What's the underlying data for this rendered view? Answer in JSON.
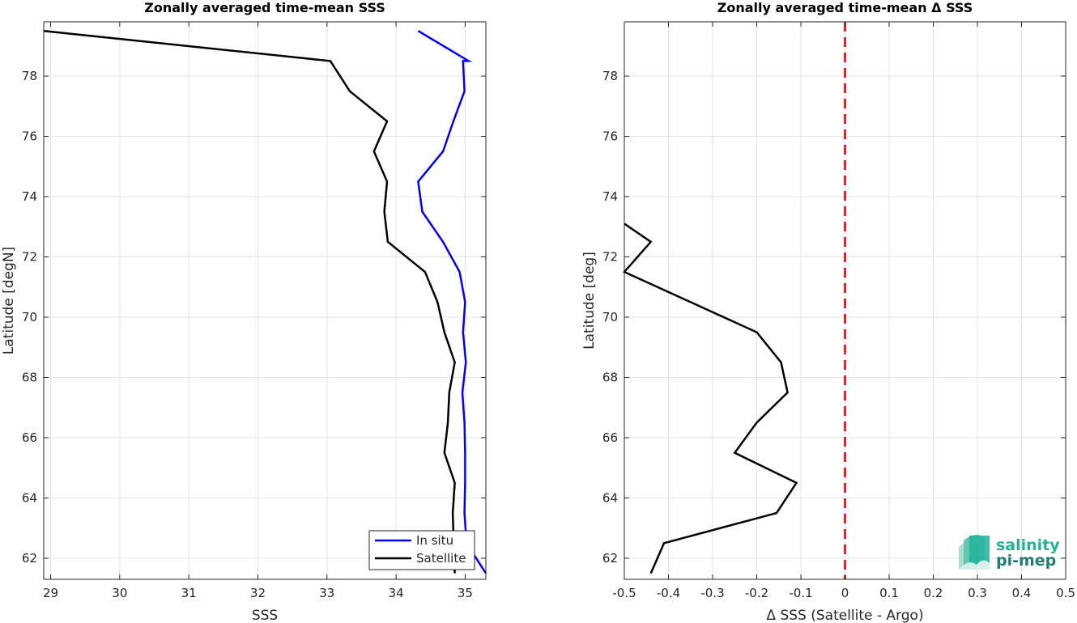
{
  "chart_data": [
    {
      "type": "line",
      "title": "Zonally averaged time-mean SSS",
      "xlabel": "SSS",
      "ylabel": "Latitude [degN]",
      "xlim": [
        28.9,
        35.3
      ],
      "ylim": [
        61.3,
        79.8
      ],
      "xticks": [
        "29",
        "30",
        "31",
        "32",
        "33",
        "34",
        "35"
      ],
      "yticks": [
        "62",
        "64",
        "66",
        "68",
        "70",
        "72",
        "74",
        "76",
        "78"
      ],
      "grid": true,
      "legend_position": "bottom-right",
      "series": [
        {
          "name": "In situ",
          "color": "#0000ff",
          "x": [
            35.3,
            35.02,
            34.99,
            35.0,
            35.0,
            34.99,
            34.96,
            35.01,
            34.97,
            35.0,
            34.92,
            34.68,
            34.38,
            34.32,
            34.68,
            34.83,
            34.99,
            34.97,
            35.05,
            34.32
          ],
          "y": [
            61.5,
            62.5,
            63.5,
            64.5,
            65.5,
            66.5,
            67.5,
            68.5,
            69.5,
            70.5,
            71.5,
            72.5,
            73.5,
            74.5,
            75.5,
            76.5,
            77.5,
            78.5,
            78.5,
            79.5
          ]
        },
        {
          "name": "Satellite",
          "color": "#000000",
          "x": [
            34.85,
            34.82,
            34.85,
            34.7,
            34.75,
            34.77,
            34.85,
            34.7,
            34.6,
            34.42,
            33.88,
            33.83,
            33.87,
            33.68,
            33.87,
            33.33,
            33.05,
            28.9
          ],
          "y": [
            61.5,
            63.5,
            64.5,
            65.5,
            66.5,
            67.5,
            68.5,
            69.5,
            70.5,
            71.5,
            72.5,
            73.5,
            74.5,
            75.5,
            76.5,
            77.5,
            78.5,
            79.5
          ]
        }
      ]
    },
    {
      "type": "line",
      "title": "Zonally averaged time-mean Δ SSS",
      "xlabel": "Δ SSS (Satellite - Argo)",
      "ylabel": "Latitude [deg]",
      "xlim": [
        -0.5,
        0.5
      ],
      "ylim": [
        61.3,
        79.8
      ],
      "xticks": [
        "-0.5",
        "-0.4",
        "-0.3",
        "-0.2",
        "-0.1",
        "0",
        "0.1",
        "0.2",
        "0.3",
        "0.4",
        "0.5"
      ],
      "yticks": [
        "62",
        "64",
        "66",
        "68",
        "70",
        "72",
        "74",
        "76",
        "78"
      ],
      "grid": true,
      "reference_line": {
        "x": 0,
        "color": "#e8161c",
        "style": "dashed"
      },
      "series": [
        {
          "color": "#000000",
          "x": [
            -0.44,
            -0.41,
            -0.155,
            -0.11,
            -0.25,
            -0.2,
            -0.13,
            -0.145,
            -0.2,
            -0.5,
            -0.44,
            -0.5
          ],
          "y": [
            61.5,
            62.5,
            63.5,
            64.5,
            65.5,
            66.5,
            67.5,
            68.5,
            69.5,
            71.5,
            72.5,
            73.1
          ]
        }
      ]
    }
  ],
  "logo": {
    "line1": "salinity",
    "line2": "pi-mep",
    "color1": "#20b39b",
    "color2": "#1e7f74"
  }
}
